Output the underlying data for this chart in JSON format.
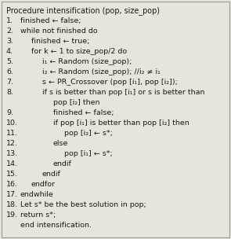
{
  "title": "Procedure intensification (pop, size_pop)",
  "lines": [
    {
      "num": "1.",
      "text": "finished ← false;",
      "indent": 0
    },
    {
      "num": "2.",
      "text": "while not finished do",
      "indent": 0
    },
    {
      "num": "3.",
      "text": "finished ← true;",
      "indent": 1
    },
    {
      "num": "4.",
      "text": "for k ← 1 to size_pop/2 do",
      "indent": 1
    },
    {
      "num": "5.",
      "text": "i₁ ← Random (size_pop);",
      "indent": 2
    },
    {
      "num": "6.",
      "text": "i₂ ← Random (size_pop); //i₂ ≠ i₁",
      "indent": 2
    },
    {
      "num": "7.",
      "text": "s ← PR_Crossover (pop [i₁], pop [i₂]);",
      "indent": 2
    },
    {
      "num": "8.",
      "text": "if s is better than pop [i₁] or s is better than",
      "indent": 2
    },
    {
      "num": "",
      "text": "pop [i₂] then",
      "indent": 3
    },
    {
      "num": "9.",
      "text": "finished ← false;",
      "indent": 3
    },
    {
      "num": "10.",
      "text": "if pop [i₁] is better than pop [i₂] then",
      "indent": 3
    },
    {
      "num": "11.",
      "text": "pop [i₂] ← s*;",
      "indent": 4
    },
    {
      "num": "12.",
      "text": "else",
      "indent": 3
    },
    {
      "num": "13.",
      "text": "pop [i₁] ← s*;",
      "indent": 4
    },
    {
      "num": "14.",
      "text": "endif",
      "indent": 3
    },
    {
      "num": "15.",
      "text": "endif",
      "indent": 2
    },
    {
      "num": "16.",
      "text": "endfor",
      "indent": 1
    },
    {
      "num": "17.",
      "text": "endwhile",
      "indent": 0
    },
    {
      "num": "18.",
      "text": "Let s* be the best solution in pop;",
      "indent": 0
    },
    {
      "num": "19.",
      "text": "return s*;",
      "indent": 0
    },
    {
      "num": "",
      "text": "end intensification.",
      "indent": 0
    }
  ],
  "bg_color": "#e8e4dc",
  "text_color": "#1a1a1a",
  "border_color": "#999999",
  "font_size": 6.8,
  "title_font_size": 6.9
}
